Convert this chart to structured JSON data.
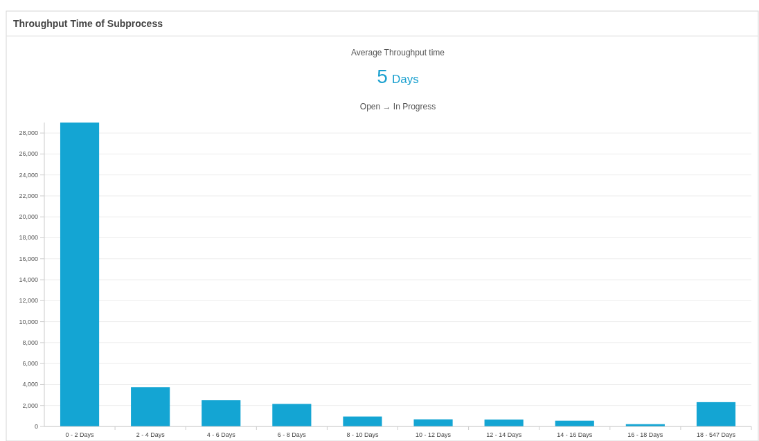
{
  "chart_data": {
    "type": "bar",
    "title": "Throughput Time of Subprocess",
    "subtitle": "Average Throughput time",
    "annotations": [
      "5 Days",
      "Open → In Progress"
    ],
    "categories": [
      "0 - 2 Days",
      "2 - 4 Days",
      "4 - 6 Days",
      "6 - 8 Days",
      "8 - 10 Days",
      "10 - 12 Days",
      "12 - 14 Days",
      "14 - 16 Days",
      "16 - 18 Days",
      "18 - 547 Days"
    ],
    "values": [
      29000,
      3750,
      2500,
      2150,
      950,
      680,
      660,
      550,
      220,
      2320
    ],
    "color": "#14a5d3",
    "ylim": [
      0,
      29000
    ],
    "yticks": [
      0,
      {
        "value": 2000,
        "label": "2,000"
      },
      {
        "value": 4000,
        "label": "4,000"
      },
      {
        "value": 6000,
        "label": "6,000"
      },
      {
        "value": 8000,
        "label": "8,000"
      },
      {
        "value": 10000,
        "label": "10,000"
      },
      {
        "value": 12000,
        "label": "12,000"
      },
      {
        "value": 14000,
        "label": "14,000"
      },
      {
        "value": 16000,
        "label": "16,000"
      },
      {
        "value": 18000,
        "label": "18,000"
      },
      {
        "value": 20000,
        "label": "20,000"
      },
      {
        "value": 22000,
        "label": "22,000"
      },
      {
        "value": 24000,
        "label": "24,000"
      },
      {
        "value": 26000,
        "label": "26,000"
      },
      {
        "value": 28000,
        "label": "28,000"
      }
    ],
    "grid": "y"
  }
}
